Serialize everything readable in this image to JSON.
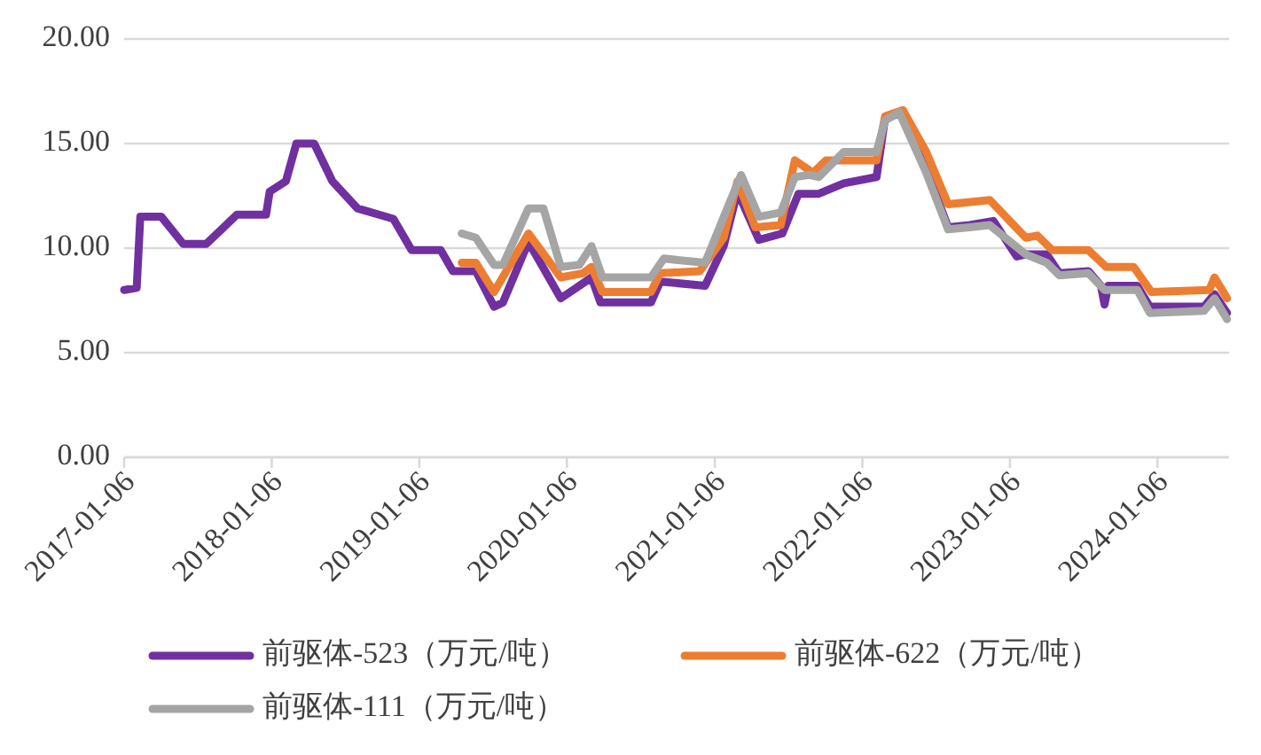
{
  "chart_data": {
    "type": "line",
    "x": [
      "2017-01-06",
      "2017-02-06",
      "2017-02-15",
      "2017-04-08",
      "2017-06-01",
      "2017-07-28",
      "2017-10-12",
      "2017-12-23",
      "2018-01-01",
      "2018-02-10",
      "2018-03-08",
      "2018-04-21",
      "2018-06-05",
      "2018-08-06",
      "2018-11-03",
      "2018-12-18",
      "2019-02-28",
      "2019-03-30",
      "2019-05-26",
      "2019-07-10",
      "2019-08-01",
      "2019-10-03",
      "2019-12-22",
      "2020-02-06",
      "2020-03-07",
      "2020-03-29",
      "2020-08-01",
      "2020-08-24",
      "2020-12-13",
      "2021-01-28",
      "2021-03-03",
      "2021-04-25",
      "2021-06-22",
      "2021-08-01",
      "2021-09-20",
      "2021-11-21",
      "2022-02-10",
      "2022-03-03",
      "2022-04-16",
      "2022-06-13",
      "2022-08-06",
      "2022-09-28",
      "2022-11-26",
      "2023-01-23",
      "2023-02-14",
      "2023-04-07",
      "2023-05-08",
      "2023-07-19",
      "2023-08-19",
      "2023-08-28",
      "2023-09-06",
      "2023-11-17",
      "2023-12-18",
      "2024-04-30",
      "2024-05-26",
      "2024-06-26"
    ],
    "series": [
      {
        "name": "前驱体-523（万元/吨）",
        "color": "#7030a0",
        "values": [
          8.0,
          8.1,
          11.5,
          11.5,
          10.2,
          10.2,
          11.6,
          11.6,
          12.7,
          13.2,
          15.0,
          15.0,
          13.2,
          11.9,
          11.4,
          9.9,
          9.9,
          8.9,
          8.9,
          7.2,
          7.4,
          10.3,
          7.6,
          8.2,
          8.6,
          7.4,
          7.4,
          8.4,
          8.2,
          10.1,
          12.7,
          10.4,
          10.7,
          12.6,
          12.6,
          13.1,
          13.4,
          16.2,
          16.5,
          13.8,
          11.0,
          11.1,
          11.3,
          9.6,
          9.7,
          9.7,
          8.8,
          8.9,
          8.2,
          7.3,
          8.2,
          8.2,
          7.2,
          7.2,
          7.8,
          6.9
        ]
      },
      {
        "name": "前驱体-622（万元/吨）",
        "color": "#ed7d31",
        "x": [
          "2019-04-21",
          "2019-05-26",
          "2019-07-10",
          "2019-10-03",
          "2019-12-22",
          "2020-02-15",
          "2020-03-07",
          "2020-04-03",
          "2020-08-01",
          "2020-08-24",
          "2020-11-30",
          "2021-01-28",
          "2021-03-03",
          "2021-04-16",
          "2021-06-18",
          "2021-07-23",
          "2021-09-06",
          "2021-10-08",
          "2022-02-10",
          "2022-03-03",
          "2022-04-16",
          "2022-06-13",
          "2022-08-06",
          "2022-11-17",
          "2023-02-14",
          "2023-03-15",
          "2023-04-21",
          "2023-07-19",
          "2023-09-01",
          "2023-11-08",
          "2023-12-22",
          "2024-05-13",
          "2024-05-26",
          "2024-06-26"
        ],
        "values": [
          9.3,
          9.3,
          7.9,
          10.7,
          8.6,
          8.8,
          9.1,
          7.9,
          7.9,
          8.8,
          8.9,
          10.5,
          13.2,
          11.0,
          11.1,
          14.2,
          13.6,
          14.2,
          14.2,
          16.3,
          16.6,
          14.6,
          12.1,
          12.3,
          10.5,
          10.6,
          9.9,
          9.9,
          9.1,
          9.1,
          7.9,
          8.0,
          8.6,
          7.6
        ]
      },
      {
        "name": "前驱体-111（万元/吨）",
        "color": "#a5a5a5",
        "x": [
          "2019-04-21",
          "2019-05-26",
          "2019-07-10",
          "2019-08-01",
          "2019-10-03",
          "2019-11-09",
          "2019-12-22",
          "2020-02-06",
          "2020-03-07",
          "2020-04-03",
          "2020-08-01",
          "2020-09-02",
          "2020-12-13",
          "2021-02-10",
          "2021-03-12",
          "2021-04-25",
          "2021-06-18",
          "2021-07-23",
          "2021-08-28",
          "2021-09-20",
          "2021-11-21",
          "2022-02-10",
          "2022-03-03",
          "2022-04-07",
          "2022-06-13",
          "2022-08-06",
          "2022-09-28",
          "2022-11-17",
          "2023-02-14",
          "2023-04-07",
          "2023-05-08",
          "2023-07-19",
          "2023-08-28",
          "2023-11-17",
          "2023-12-18",
          "2024-04-30",
          "2024-05-26",
          "2024-06-26"
        ],
        "values": [
          10.7,
          10.5,
          9.2,
          9.2,
          11.9,
          11.9,
          9.1,
          9.2,
          10.1,
          8.6,
          8.6,
          9.5,
          9.3,
          12.1,
          13.5,
          11.5,
          11.7,
          13.4,
          13.5,
          13.4,
          14.6,
          14.6,
          16.1,
          16.5,
          13.6,
          10.9,
          11.0,
          11.1,
          9.7,
          9.3,
          8.7,
          8.8,
          8.0,
          8.0,
          6.9,
          7.0,
          7.6,
          6.6
        ]
      }
    ],
    "xlim": [
      "2017-01-06",
      "2024-07-01"
    ],
    "xticks": [
      {
        "value": "2017-01-06",
        "label": "2017-01-06"
      },
      {
        "value": "2018-01-06",
        "label": "2018-01-06"
      },
      {
        "value": "2019-01-06",
        "label": "2019-01-06"
      },
      {
        "value": "2020-01-06",
        "label": "2020-01-06"
      },
      {
        "value": "2021-01-06",
        "label": "2021-01-06"
      },
      {
        "value": "2022-01-06",
        "label": "2022-01-06"
      },
      {
        "value": "2023-01-06",
        "label": "2023-01-06"
      },
      {
        "value": "2024-01-06",
        "label": "2024-01-06"
      }
    ],
    "ylim": [
      0,
      20
    ],
    "yticks": [
      {
        "value": 0,
        "label": "0.00"
      },
      {
        "value": 5,
        "label": "5.00"
      },
      {
        "value": 10,
        "label": "10.00"
      },
      {
        "value": 15,
        "label": "15.00"
      },
      {
        "value": 20,
        "label": "20.00"
      }
    ],
    "grid": "y",
    "legend": "bottom",
    "marker": "none",
    "line_style": "solid"
  }
}
